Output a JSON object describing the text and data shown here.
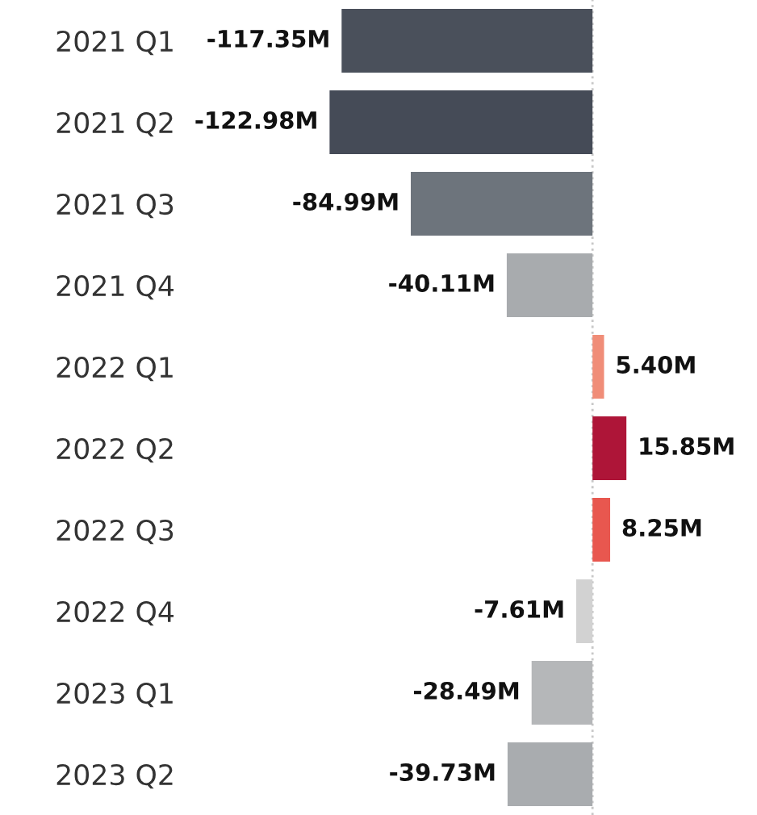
{
  "chart_data": {
    "type": "bar",
    "orientation": "horizontal",
    "categories": [
      "2021 Q1",
      "2021 Q2",
      "2021 Q3",
      "2021 Q4",
      "2022 Q1",
      "2022 Q2",
      "2022 Q3",
      "2022 Q4",
      "2023 Q1",
      "2023 Q2"
    ],
    "values": [
      -117.35,
      -122.98,
      -84.99,
      -40.11,
      5.4,
      15.85,
      8.25,
      -7.61,
      -28.49,
      -39.73
    ],
    "colors": [
      "#4a505b",
      "#454b57",
      "#6d747c",
      "#a8abae",
      "#f08d78",
      "#ae1538",
      "#e8574f",
      "#d2d2d2",
      "#b5b7b9",
      "#a9acaf"
    ],
    "value_labels": [
      "-117.35M",
      "-122.98M",
      "-84.99M",
      "-40.11M",
      "5.40M",
      "15.85M",
      "8.25M",
      "-7.61M",
      "-28.49M",
      "-39.73M"
    ],
    "ref_lines": [
      {
        "axis": "x",
        "value": 0,
        "color": "#c8c8c8",
        "line_style": "dotted"
      }
    ],
    "grid": false,
    "legend": false
  }
}
